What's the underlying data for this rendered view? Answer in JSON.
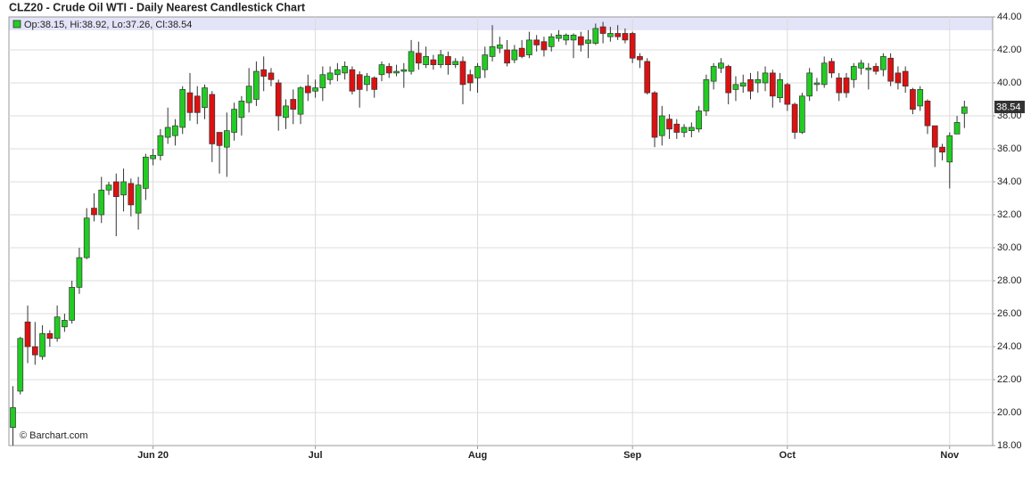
{
  "chart_data": {
    "type": "candlestick",
    "title": "CLZ20 - Crude Oil WTI - Daily Nearest Candlestick Chart",
    "legend_text": "Op:38.15, Hi:38.92, Lo:37.26, Cl:38.54",
    "watermark": "© Barchart.com",
    "categories": [
      null,
      null,
      null,
      null,
      null,
      null,
      null,
      null,
      null,
      null,
      null,
      null,
      null,
      null,
      null,
      null,
      null,
      null,
      null,
      "Jun 20",
      null,
      null,
      null,
      null,
      null,
      null,
      null,
      null,
      null,
      null,
      null,
      null,
      null,
      null,
      null,
      null,
      null,
      null,
      null,
      null,
      null,
      "Jul",
      null,
      null,
      null,
      null,
      null,
      null,
      null,
      null,
      null,
      null,
      null,
      null,
      null,
      null,
      null,
      null,
      null,
      null,
      null,
      null,
      null,
      "Aug",
      null,
      null,
      null,
      null,
      null,
      null,
      null,
      null,
      null,
      null,
      null,
      null,
      null,
      null,
      null,
      null,
      null,
      null,
      null,
      null,
      "Sep",
      null,
      null,
      null,
      null,
      null,
      null,
      null,
      null,
      null,
      null,
      null,
      null,
      null,
      null,
      null,
      null,
      null,
      null,
      null,
      null,
      "Oct",
      null,
      null,
      null,
      null,
      null,
      null,
      null,
      null,
      null,
      null,
      null,
      null,
      null,
      null,
      null,
      null,
      null,
      null,
      null,
      null,
      null,
      "Nov",
      null,
      null
    ],
    "ohlc": {
      "open": [
        19.1,
        21.3,
        25.5,
        24.0,
        23.4,
        24.8,
        24.5,
        25.2,
        25.6,
        27.6,
        29.4,
        32.4,
        32.0,
        33.5,
        34.0,
        33.2,
        33.9,
        32.1,
        33.6,
        35.4,
        35.6,
        36.7,
        36.8,
        37.3,
        39.4,
        39.2,
        38.5,
        39.3,
        37.0,
        36.1,
        37.0,
        37.9,
        38.8,
        39.0,
        40.8,
        40.6,
        40.0,
        37.9,
        39.0,
        38.1,
        39.8,
        39.5,
        39.7,
        40.2,
        40.5,
        40.6,
        40.8,
        40.5,
        39.9,
        40.3,
        40.5,
        41.0,
        40.6,
        40.7,
        40.7,
        41.8,
        41.1,
        41.4,
        41.1,
        41.6,
        41.1,
        41.3,
        40.5,
        40.3,
        40.8,
        41.6,
        42.1,
        42.0,
        41.4,
        42.1,
        41.7,
        42.6,
        42.5,
        42.2,
        42.7,
        42.6,
        42.6,
        42.8,
        42.4,
        42.4,
        43.4,
        42.8,
        43.0,
        43.0,
        43.0,
        41.6,
        41.3,
        39.4,
        36.8,
        37.8,
        37.5,
        37.0,
        37.1,
        37.2,
        38.3,
        40.1,
        40.9,
        41.0,
        39.6,
        39.8,
        40.2,
        40.0,
        40.0,
        40.6,
        39.1,
        39.9,
        38.7,
        37.0,
        39.2,
        39.9,
        39.9,
        41.3,
        40.3,
        40.3,
        40.2,
        40.9,
        40.8,
        41.0,
        40.8,
        41.5,
        40.6,
        40.7,
        39.6,
        38.6,
        38.9,
        37.4,
        36.1,
        35.2,
        36.9,
        38.15
      ],
      "high": [
        21.6,
        24.6,
        26.5,
        25.5,
        25.3,
        25.0,
        26.5,
        26.0,
        28.0,
        30.0,
        32.4,
        33.3,
        34.3,
        34.0,
        34.5,
        34.8,
        34.2,
        34.3,
        35.7,
        36.0,
        37.2,
        38.5,
        37.8,
        39.8,
        40.6,
        39.8,
        39.9,
        39.5,
        37.0,
        38.2,
        38.8,
        39.2,
        40.9,
        41.3,
        41.6,
        40.9,
        40.2,
        39.0,
        39.6,
        39.8,
        40.5,
        40.2,
        41.0,
        41.0,
        41.2,
        41.3,
        41.0,
        40.7,
        40.6,
        40.4,
        41.3,
        41.2,
        41.1,
        41.2,
        42.6,
        42.5,
        42.2,
        41.7,
        42.0,
        41.9,
        41.5,
        41.6,
        40.8,
        41.2,
        42.2,
        43.5,
        42.8,
        42.6,
        42.3,
        42.6,
        43.1,
        42.9,
        42.8,
        43.0,
        43.2,
        43.0,
        43.0,
        43.1,
        43.2,
        43.6,
        43.7,
        43.4,
        43.5,
        43.3,
        43.1,
        41.8,
        41.5,
        39.5,
        38.6,
        38.1,
        37.8,
        37.5,
        37.6,
        38.6,
        40.5,
        41.2,
        41.5,
        41.1,
        40.4,
        40.5,
        40.6,
        40.7,
        41.0,
        40.8,
        40.6,
        40.0,
        38.8,
        39.4,
        40.9,
        40.3,
        41.6,
        41.5,
        40.6,
        40.6,
        41.2,
        41.4,
        41.2,
        41.2,
        41.8,
        41.8,
        41.0,
        41.0,
        39.7,
        39.8,
        39.0,
        37.4,
        36.3,
        37.0,
        38.0,
        38.92
      ],
      "low": [
        18.0,
        21.1,
        23.0,
        22.9,
        23.2,
        24.0,
        24.3,
        24.9,
        25.4,
        27.2,
        29.3,
        31.6,
        31.5,
        33.2,
        30.7,
        32.2,
        31.9,
        31.1,
        32.9,
        35.0,
        35.3,
        36.3,
        36.2,
        36.9,
        37.7,
        37.5,
        37.8,
        35.2,
        34.5,
        34.3,
        36.5,
        36.8,
        38.2,
        38.6,
        39.5,
        39.8,
        37.1,
        37.2,
        37.5,
        37.5,
        38.9,
        39.1,
        38.9,
        39.9,
        40.1,
        40.2,
        39.3,
        38.5,
        39.5,
        39.1,
        40.1,
        40.3,
        40.4,
        39.7,
        40.5,
        40.8,
        40.9,
        40.8,
        40.9,
        40.5,
        40.9,
        38.7,
        39.5,
        39.4,
        40.3,
        41.3,
        41.8,
        41.0,
        41.2,
        41.5,
        41.5,
        41.9,
        41.6,
        41.9,
        42.5,
        42.3,
        41.5,
        41.9,
        41.5,
        42.3,
        42.4,
        42.5,
        42.6,
        42.4,
        41.2,
        40.9,
        39.3,
        36.1,
        36.2,
        36.6,
        36.6,
        36.7,
        36.7,
        37.0,
        38.0,
        39.6,
        40.6,
        38.7,
        38.9,
        39.4,
        39.0,
        39.4,
        39.5,
        38.5,
        38.8,
        38.3,
        36.6,
        36.9,
        38.9,
        39.5,
        39.7,
        40.3,
        38.9,
        39.1,
        39.7,
        40.5,
        39.6,
        40.5,
        40.4,
        39.8,
        39.6,
        39.4,
        38.1,
        38.3,
        36.9,
        34.9,
        35.3,
        33.6,
        37.2,
        37.26
      ],
      "close": [
        20.3,
        24.5,
        24.0,
        23.5,
        24.8,
        24.5,
        25.8,
        25.6,
        27.6,
        29.4,
        31.8,
        32.0,
        33.5,
        33.8,
        33.1,
        34.0,
        32.6,
        33.8,
        35.5,
        35.6,
        36.8,
        37.3,
        37.4,
        39.6,
        38.2,
        38.2,
        39.7,
        36.3,
        36.2,
        37.1,
        38.4,
        38.9,
        39.8,
        40.7,
        40.4,
        40.2,
        38.0,
        38.6,
        38.4,
        39.7,
        39.4,
        39.7,
        40.5,
        40.6,
        40.8,
        41.0,
        39.5,
        39.6,
        40.4,
        39.6,
        41.1,
        40.6,
        40.7,
        40.8,
        41.9,
        41.2,
        41.6,
        41.1,
        41.7,
        41.1,
        41.3,
        39.9,
        40.0,
        41.0,
        41.7,
        42.2,
        42.3,
        41.2,
        42.0,
        41.6,
        42.6,
        42.3,
        42.0,
        42.8,
        42.9,
        42.9,
        42.9,
        42.3,
        42.6,
        43.3,
        43.0,
        43.0,
        42.8,
        42.6,
        41.5,
        41.4,
        39.4,
        36.7,
        38.0,
        37.2,
        37.0,
        37.3,
        37.3,
        38.3,
        40.2,
        41.0,
        41.2,
        39.4,
        39.9,
        40.0,
        39.5,
        40.2,
        40.6,
        39.2,
        40.2,
        38.7,
        37.0,
        39.2,
        40.6,
        40.0,
        41.2,
        40.6,
        39.4,
        39.4,
        41.0,
        41.2,
        40.9,
        40.7,
        41.6,
        40.1,
        40.0,
        39.8,
        38.4,
        39.6,
        37.4,
        36.1,
        35.8,
        36.8,
        37.6,
        38.54
      ]
    },
    "up_color": "#22cc22",
    "down_color": "#dd1111",
    "ylim": [
      18,
      44
    ],
    "yticks": [
      {
        "value": 18,
        "label": "18.00"
      },
      {
        "value": 20,
        "label": "20.00"
      },
      {
        "value": 22,
        "label": "22.00"
      },
      {
        "value": 24,
        "label": "24.00"
      },
      {
        "value": 26,
        "label": "26.00"
      },
      {
        "value": 28,
        "label": "28.00"
      },
      {
        "value": 30,
        "label": "30.00"
      },
      {
        "value": 32,
        "label": "32.00"
      },
      {
        "value": 34,
        "label": "34.00"
      },
      {
        "value": 36,
        "label": "36.00"
      },
      {
        "value": 38,
        "label": "38.00"
      },
      {
        "value": 40,
        "label": "40.00"
      },
      {
        "value": 42,
        "label": "42.00"
      },
      {
        "value": 44,
        "label": "44.00"
      }
    ],
    "grid": true
  }
}
